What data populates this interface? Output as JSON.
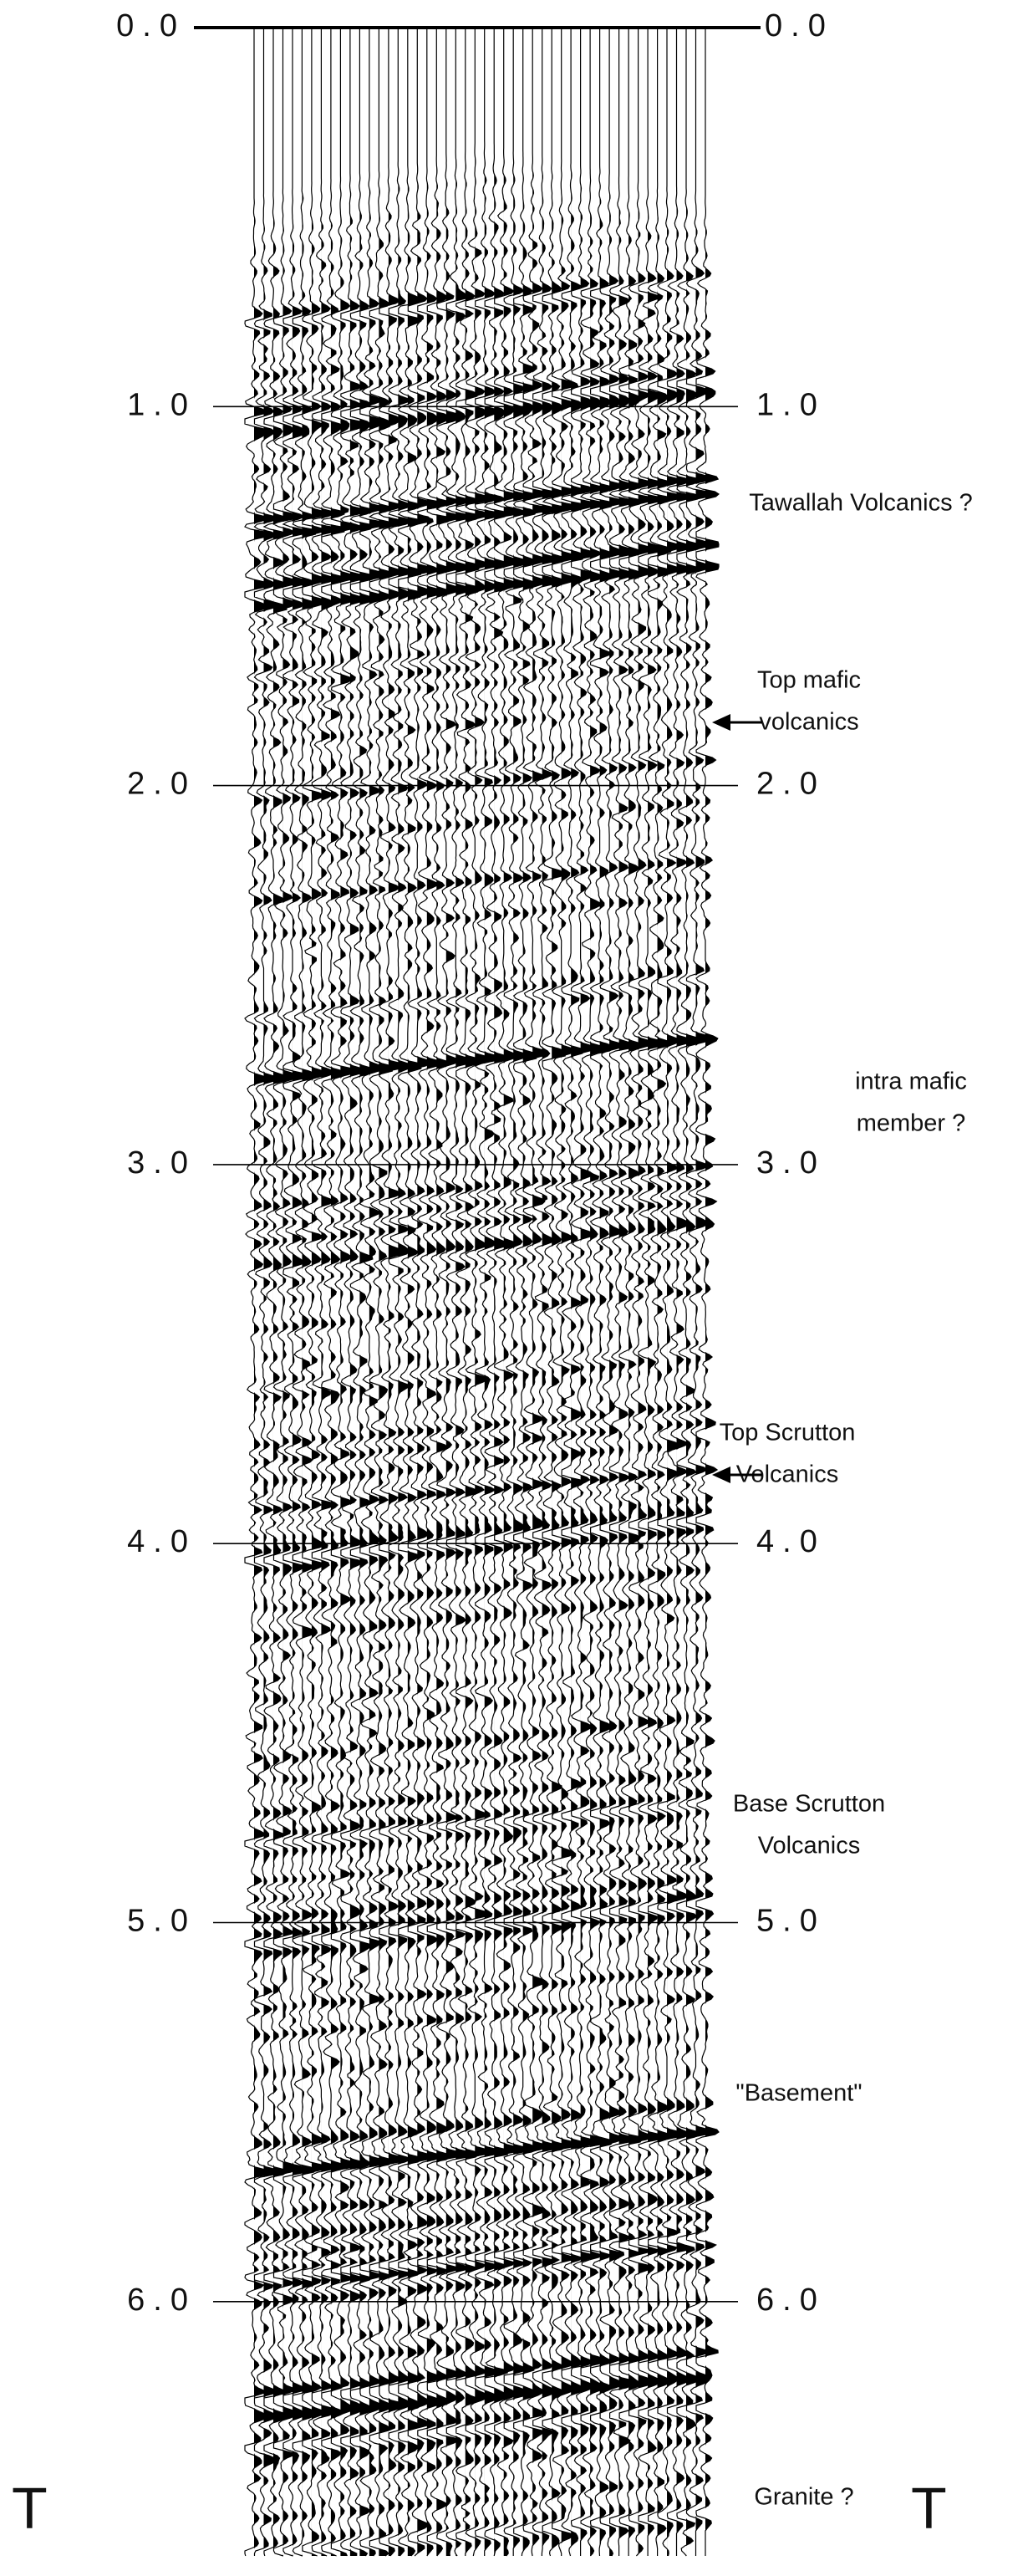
{
  "time_axis": {
    "left_labels": [
      "0.0",
      "1.0",
      "2.0",
      "3.0",
      "4.0",
      "5.0",
      "6.0"
    ],
    "right_labels": [
      "0.0",
      "1.0",
      "2.0",
      "3.0",
      "4.0",
      "5.0",
      "6.0"
    ]
  },
  "annotations": [
    {
      "lines": [
        "Tawallah Volcanics ?"
      ]
    },
    {
      "lines": [
        "Top mafic",
        "volcanics"
      ]
    },
    {
      "lines": [
        "intra mafic",
        "member ?"
      ]
    },
    {
      "lines": [
        "Top Scrutton",
        "Volcanics"
      ]
    },
    {
      "lines": [
        "Base Scrutton",
        "Volcanics"
      ]
    },
    {
      "lines": [
        "\"Basement\""
      ]
    },
    {
      "lines": [
        "Granite ?"
      ]
    }
  ],
  "corner_labels": [
    "T",
    "T"
  ]
}
